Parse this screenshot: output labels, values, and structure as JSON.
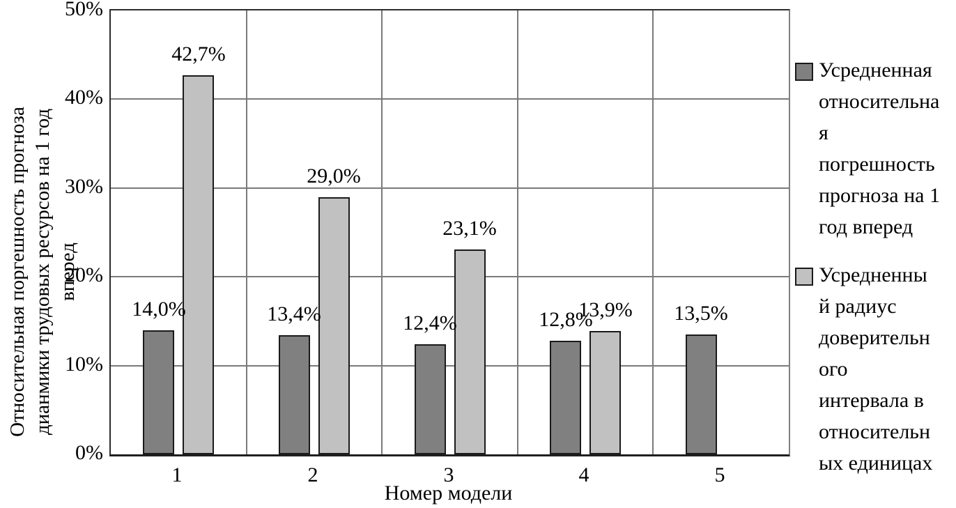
{
  "chart_data": {
    "type": "bar",
    "title": "",
    "categories": [
      "1",
      "2",
      "3",
      "4",
      "5"
    ],
    "x_axis_label": "Номер модели",
    "y_axis_label": "Относительная поргешность прогноза дианмики трудовых ресурсов на 1 год вперед",
    "y_axis_label_lines": [
      "Относительная поргешность прогноза",
      "дианмики трудовых ресурсов на 1 год",
      "вперед"
    ],
    "ylim": [
      0,
      50
    ],
    "ytick_step": 10,
    "ytick_labels": [
      "0%",
      "10%",
      "20%",
      "30%",
      "40%",
      "50%"
    ],
    "grid": true,
    "legend_position": "right",
    "series": [
      {
        "name": "Усредненная относительная погрешность прогноза на 1 год вперед",
        "color": "#808080",
        "values": [
          14.0,
          13.4,
          12.4,
          12.8,
          13.5
        ],
        "data_labels": [
          "14,0%",
          "13,4%",
          "12,4%",
          "12,8%",
          "13,5%"
        ],
        "legend_lines": [
          "Усредненная",
          "относительна",
          "я",
          "погрешность",
          "прогноза на 1",
          "год вперед"
        ]
      },
      {
        "name": "Усредненный радиус доверительного интервала в относительных единицах",
        "color": "#c1c1c1",
        "values": [
          42.7,
          29.0,
          23.1,
          13.9,
          null
        ],
        "data_labels": [
          "42,7%",
          "29,0%",
          "23,1%",
          "13,9%",
          null
        ],
        "legend_lines": [
          "Усредненны",
          "й радиус",
          "доверительн",
          "ого",
          "интервала в",
          "относительн",
          "ых единицах"
        ]
      }
    ]
  }
}
